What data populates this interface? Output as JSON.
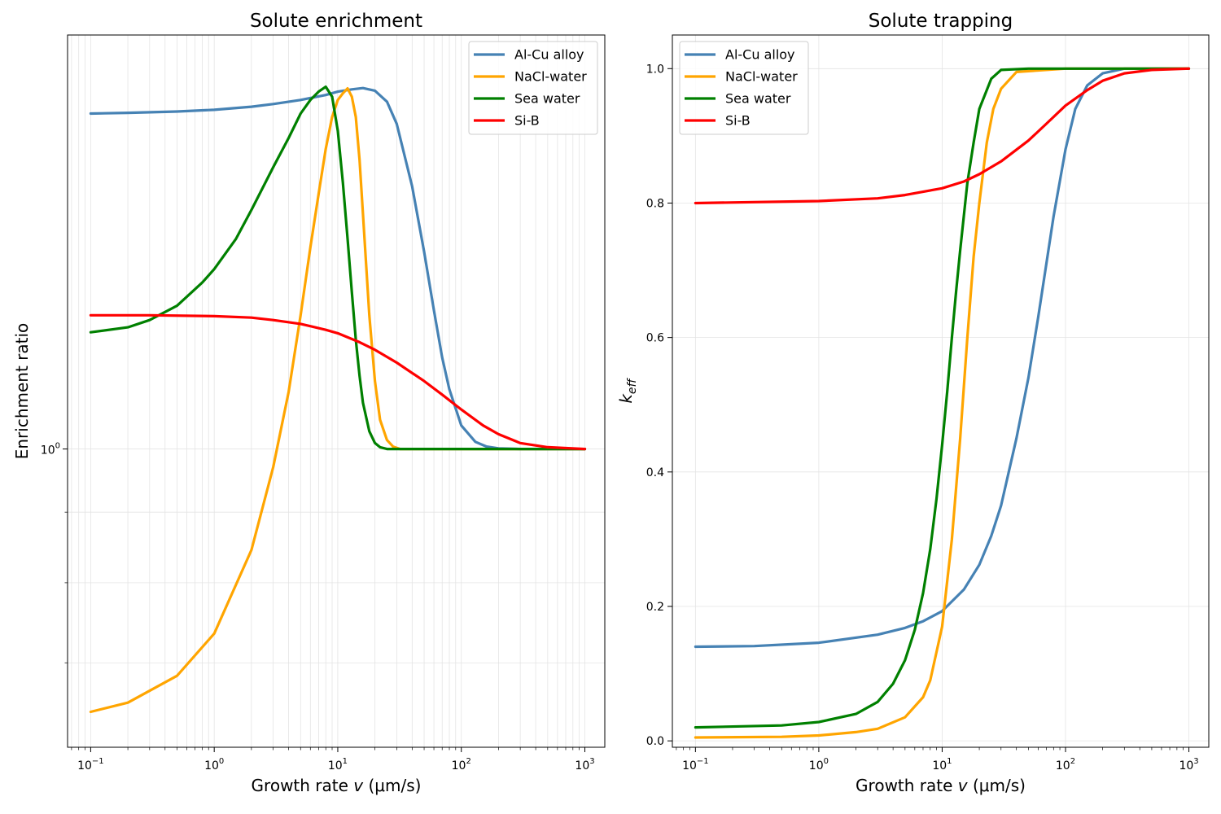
{
  "colors": {
    "Al-Cu alloy": "#4682b4",
    "NaCl-water": "#ffa500",
    "Sea water": "#008000",
    "Si-B": "#ff0000",
    "grid": "#e4e4e4"
  },
  "chart_data": [
    {
      "type": "line",
      "title": "Solute enrichment",
      "xlabel": "Growth rate v (μm/s)",
      "ylabel": "Enrichment ratio",
      "xscale": "log",
      "yscale": "log",
      "xlim": [
        0.065,
        1450
      ],
      "ylim": [
        0.608,
        1.995
      ],
      "xticks": [
        0.1,
        1,
        10,
        100,
        1000
      ],
      "xtick_labels": [
        [
          "10",
          "−1"
        ],
        [
          "10",
          "0"
        ],
        [
          "10",
          "1"
        ],
        [
          "10",
          "2"
        ],
        [
          "10",
          "3"
        ]
      ],
      "yticks": [
        1
      ],
      "ytick_labels": [
        [
          "10",
          "0"
        ]
      ],
      "grid": "major and minor",
      "legend_position": "upper right",
      "series": [
        {
          "name": "Al-Cu alloy",
          "x": [
            0.1,
            0.2,
            0.5,
            1,
            2,
            3,
            5,
            8,
            10,
            13,
            16,
            20,
            25,
            30,
            40,
            50,
            60,
            70,
            80,
            100,
            130,
            160,
            200,
            300,
            500,
            1000
          ],
          "y": [
            1.75,
            1.752,
            1.756,
            1.761,
            1.77,
            1.778,
            1.79,
            1.805,
            1.815,
            1.822,
            1.826,
            1.818,
            1.785,
            1.72,
            1.55,
            1.39,
            1.26,
            1.165,
            1.105,
            1.04,
            1.012,
            1.004,
            1.001,
            1.0,
            1.0,
            1.0
          ]
        },
        {
          "name": "NaCl-water",
          "x": [
            0.1,
            0.2,
            0.5,
            1,
            2,
            3,
            4,
            5,
            6,
            7,
            8,
            9,
            10,
            11,
            12,
            13,
            14,
            15,
            16,
            18,
            20,
            22,
            25,
            28,
            32,
            40,
            60,
            100,
            200,
            1000
          ],
          "y": [
            0.645,
            0.655,
            0.685,
            0.735,
            0.845,
            0.97,
            1.1,
            1.25,
            1.4,
            1.53,
            1.65,
            1.74,
            1.79,
            1.81,
            1.825,
            1.8,
            1.74,
            1.62,
            1.48,
            1.25,
            1.12,
            1.05,
            1.015,
            1.004,
            1.0,
            1.0,
            1.0,
            1.0,
            1.0,
            1.0
          ]
        },
        {
          "name": "Sea water",
          "x": [
            0.1,
            0.2,
            0.3,
            0.5,
            0.8,
            1,
            1.5,
            2,
            3,
            4,
            5,
            6,
            7,
            8,
            9,
            10,
            11,
            12,
            13,
            14,
            15,
            16,
            18,
            20,
            22,
            25,
            30,
            40,
            100,
            1000
          ],
          "y": [
            1.215,
            1.225,
            1.24,
            1.27,
            1.32,
            1.35,
            1.42,
            1.49,
            1.6,
            1.68,
            1.75,
            1.79,
            1.815,
            1.83,
            1.8,
            1.7,
            1.56,
            1.42,
            1.3,
            1.2,
            1.13,
            1.08,
            1.03,
            1.01,
            1.003,
            1.0,
            1.0,
            1.0,
            1.0,
            1.0
          ]
        },
        {
          "name": "Si-B",
          "x": [
            0.1,
            0.3,
            1,
            2,
            3,
            5,
            8,
            10,
            15,
            20,
            30,
            50,
            70,
            100,
            150,
            200,
            300,
            500,
            1000
          ],
          "y": [
            1.25,
            1.25,
            1.248,
            1.245,
            1.24,
            1.232,
            1.22,
            1.213,
            1.195,
            1.18,
            1.155,
            1.12,
            1.095,
            1.068,
            1.04,
            1.025,
            1.01,
            1.003,
            1.0
          ]
        }
      ]
    },
    {
      "type": "line",
      "title": "Solute trapping",
      "xlabel": "Growth rate v (μm/s)",
      "ylabel": "k_eff",
      "xscale": "log",
      "yscale": "linear",
      "xlim": [
        0.065,
        1450
      ],
      "ylim": [
        -0.0095,
        1.05
      ],
      "xticks": [
        0.1,
        1,
        10,
        100,
        1000
      ],
      "xtick_labels": [
        [
          "10",
          "−1"
        ],
        [
          "10",
          "0"
        ],
        [
          "10",
          "1"
        ],
        [
          "10",
          "2"
        ],
        [
          "10",
          "3"
        ]
      ],
      "yticks": [
        0.0,
        0.2,
        0.4,
        0.6,
        0.8,
        1.0
      ],
      "ytick_labels": [
        "0.0",
        "0.2",
        "0.4",
        "0.6",
        "0.8",
        "1.0"
      ],
      "grid": "major",
      "legend_position": "upper left",
      "series": [
        {
          "name": "Al-Cu alloy",
          "x": [
            0.1,
            0.3,
            1,
            3,
            5,
            7,
            10,
            15,
            20,
            25,
            30,
            40,
            50,
            60,
            70,
            80,
            100,
            120,
            150,
            200,
            300,
            1000
          ],
          "y": [
            0.14,
            0.141,
            0.146,
            0.158,
            0.168,
            0.178,
            0.193,
            0.225,
            0.262,
            0.305,
            0.35,
            0.45,
            0.54,
            0.63,
            0.71,
            0.78,
            0.88,
            0.94,
            0.975,
            0.993,
            1.0,
            1.0
          ]
        },
        {
          "name": "NaCl-water",
          "x": [
            0.1,
            0.5,
            1,
            2,
            3,
            5,
            7,
            8,
            10,
            12,
            14,
            16,
            18,
            20,
            23,
            26,
            30,
            40,
            100,
            1000
          ],
          "y": [
            0.005,
            0.006,
            0.008,
            0.013,
            0.018,
            0.035,
            0.065,
            0.09,
            0.17,
            0.3,
            0.45,
            0.6,
            0.72,
            0.8,
            0.89,
            0.94,
            0.97,
            0.995,
            1.0,
            1.0
          ]
        },
        {
          "name": "Sea water",
          "x": [
            0.1,
            0.5,
            1,
            2,
            3,
            4,
            5,
            6,
            7,
            8,
            9,
            10,
            11,
            12,
            13,
            14,
            16,
            18,
            20,
            25,
            30,
            50,
            1000
          ],
          "y": [
            0.02,
            0.023,
            0.028,
            0.04,
            0.058,
            0.085,
            0.12,
            0.165,
            0.22,
            0.285,
            0.36,
            0.44,
            0.52,
            0.6,
            0.67,
            0.73,
            0.83,
            0.89,
            0.94,
            0.985,
            0.998,
            1.0,
            1.0
          ]
        },
        {
          "name": "Si-B",
          "x": [
            0.1,
            1,
            3,
            5,
            10,
            15,
            20,
            30,
            50,
            70,
            100,
            150,
            200,
            300,
            500,
            1000
          ],
          "y": [
            0.8,
            0.803,
            0.807,
            0.812,
            0.822,
            0.832,
            0.843,
            0.862,
            0.893,
            0.918,
            0.945,
            0.968,
            0.982,
            0.993,
            0.998,
            1.0
          ]
        }
      ]
    }
  ]
}
